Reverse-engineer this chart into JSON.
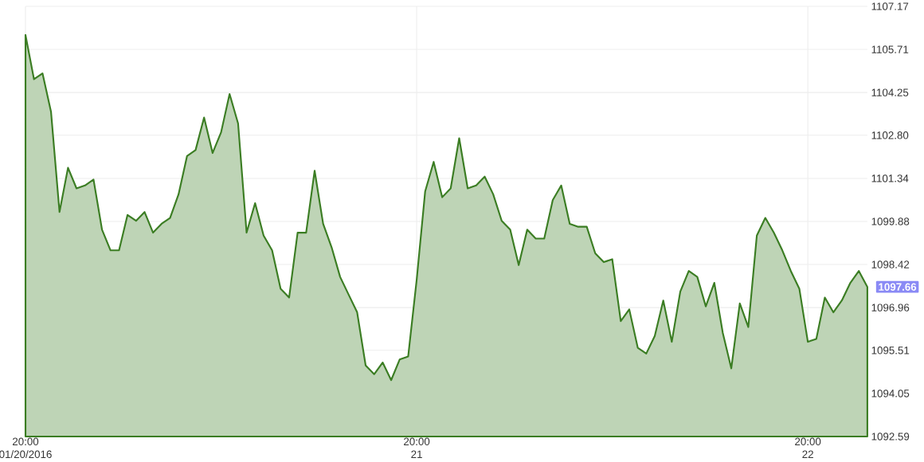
{
  "chart_data": {
    "type": "area",
    "categories": [
      "20:00 01/20/2016",
      null,
      null,
      null,
      null,
      null,
      null,
      null,
      null,
      null,
      null,
      null,
      null,
      null,
      null,
      null,
      null,
      null,
      null,
      null,
      null,
      null,
      null,
      null,
      null,
      null,
      null,
      null,
      null,
      null,
      null,
      null,
      null,
      null,
      null,
      null,
      null,
      null,
      null,
      null,
      null,
      null,
      null,
      null,
      null,
      null,
      "20:00 21",
      null,
      null,
      null,
      null,
      null,
      null,
      null,
      null,
      null,
      null,
      null,
      null,
      null,
      null,
      null,
      null,
      null,
      null,
      null,
      null,
      null,
      null,
      null,
      null,
      null,
      null,
      null,
      null,
      null,
      null,
      null,
      null,
      null,
      null,
      null,
      null,
      null,
      null,
      null,
      null,
      null,
      null,
      null,
      null,
      null,
      "20:00 22",
      null,
      null,
      null,
      null,
      null,
      null,
      null
    ],
    "values": [
      1106.2,
      1104.7,
      1104.9,
      1103.6,
      1100.2,
      1101.7,
      1101.0,
      1101.1,
      1101.3,
      1099.6,
      1098.9,
      1098.9,
      1100.1,
      1099.9,
      1100.2,
      1099.5,
      1099.8,
      1100.0,
      1100.8,
      1102.1,
      1102.3,
      1103.4,
      1102.2,
      1102.9,
      1104.2,
      1103.2,
      1099.5,
      1100.5,
      1099.4,
      1098.9,
      1097.6,
      1097.3,
      1099.5,
      1099.5,
      1101.6,
      1099.8,
      1099.0,
      1098.0,
      1097.4,
      1096.8,
      1095.0,
      1094.7,
      1095.1,
      1094.5,
      1095.2,
      1095.3,
      1097.9,
      1100.9,
      1101.9,
      1100.7,
      1101.0,
      1102.7,
      1101.0,
      1101.1,
      1101.4,
      1100.8,
      1099.9,
      1099.6,
      1098.4,
      1099.6,
      1099.3,
      1099.3,
      1100.6,
      1101.1,
      1099.8,
      1099.7,
      1099.7,
      1098.8,
      1098.5,
      1098.6,
      1096.5,
      1096.9,
      1095.6,
      1095.4,
      1096.0,
      1097.2,
      1095.8,
      1097.5,
      1098.2,
      1098.0,
      1097.0,
      1097.8,
      1096.1,
      1094.9,
      1097.1,
      1096.3,
      1099.4,
      1100.0,
      1099.5,
      1098.9,
      1098.2,
      1097.6,
      1095.8,
      1095.9,
      1097.3,
      1096.8,
      1097.2,
      1097.8,
      1098.2,
      1097.66
    ],
    "color": "#3b7d23",
    "ylim": [
      1092.59,
      1107.17
    ],
    "yticks": [
      1092.59,
      1094.05,
      1095.51,
      1096.96,
      1098.42,
      1099.88,
      1101.34,
      {
        "value": 1102.8,
        "label": "1102.80"
      },
      1104.25,
      1105.71,
      1107.17
    ],
    "grid": true,
    "annotations": [
      "1097.66"
    ]
  }
}
